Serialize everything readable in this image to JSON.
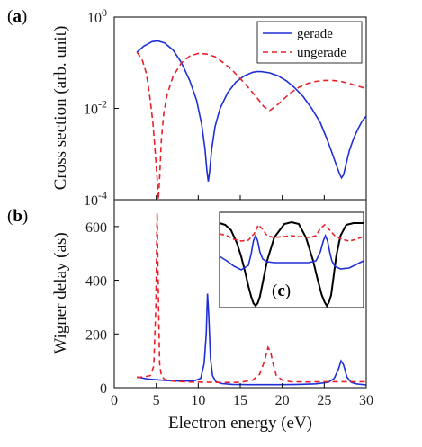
{
  "chart_data": [
    {
      "panel": "(a)",
      "type": "line",
      "ylabel": "Cross section (arb. unit)",
      "yscale": "log",
      "ylim": [
        0.0001,
        1
      ],
      "yticks": [
        {
          "value": 1,
          "base": "10",
          "exp": "0"
        },
        {
          "value": 0.01,
          "base": "10",
          "exp": "-2"
        },
        {
          "value": 0.0001,
          "base": "10",
          "exp": "-4"
        }
      ],
      "xlim": [
        0,
        30
      ],
      "legend_position": "top-right",
      "series": [
        {
          "name": "gerade",
          "color": "#1f2fd8",
          "dash": "solid",
          "x": [
            2.7,
            3.5,
            4.5,
            5.2,
            6.0,
            7.0,
            8.0,
            9.0,
            9.8,
            10.4,
            10.8,
            11.05,
            11.2,
            11.35,
            11.6,
            12.0,
            12.6,
            13.5,
            14.5,
            15.5,
            16.5,
            17.0,
            17.5,
            18.5,
            19.5,
            20.5,
            21.5,
            22.5,
            23.5,
            24.5,
            25.3,
            25.9,
            26.4,
            26.8,
            27.05,
            27.3,
            27.6,
            28.0,
            28.5,
            29.0,
            29.5,
            30.0
          ],
          "y": [
            0.17,
            0.23,
            0.29,
            0.3,
            0.27,
            0.19,
            0.1,
            0.04,
            0.015,
            0.0045,
            0.0013,
            0.0004,
            0.00025,
            0.0004,
            0.0013,
            0.004,
            0.01,
            0.022,
            0.038,
            0.052,
            0.062,
            0.064,
            0.064,
            0.06,
            0.052,
            0.04,
            0.028,
            0.018,
            0.01,
            0.005,
            0.0022,
            0.0011,
            0.0006,
            0.00038,
            0.0003,
            0.00035,
            0.0006,
            0.0012,
            0.0022,
            0.0035,
            0.0052,
            0.0068
          ]
        },
        {
          "name": "ungerade",
          "color": "#e8202a",
          "dash": "dashed",
          "x": [
            2.7,
            3.3,
            3.8,
            4.2,
            4.6,
            4.9,
            5.1,
            5.25,
            5.4,
            5.6,
            5.9,
            6.3,
            7.0,
            8.0,
            9.0,
            10.0,
            11.0,
            12.0,
            13.0,
            14.0,
            15.0,
            16.0,
            17.0,
            17.8,
            18.5,
            19.2,
            20.0,
            21.0,
            22.0,
            23.0,
            24.0,
            25.0,
            26.0,
            27.0,
            28.0,
            29.0,
            30.0
          ],
          "y": [
            0.17,
            0.12,
            0.06,
            0.02,
            0.005,
            0.001,
            0.0003,
            0.0001,
            0.0003,
            0.002,
            0.008,
            0.02,
            0.05,
            0.1,
            0.14,
            0.16,
            0.155,
            0.135,
            0.1,
            0.07,
            0.045,
            0.028,
            0.017,
            0.011,
            0.009,
            0.011,
            0.015,
            0.022,
            0.029,
            0.035,
            0.039,
            0.041,
            0.041,
            0.039,
            0.035,
            0.031,
            0.027
          ]
        }
      ]
    },
    {
      "panel": "(b)",
      "type": "line",
      "ylabel": "Wigner delay (as)",
      "xlabel": "Electron energy (eV)",
      "xlim": [
        0,
        30
      ],
      "ylim": [
        0,
        700
      ],
      "xticks": [
        0,
        5,
        10,
        15,
        20,
        25,
        30
      ],
      "yticks": [
        0,
        200,
        400,
        600
      ],
      "series": [
        {
          "name": "gerade",
          "color": "#1f2fd8",
          "dash": "solid",
          "x": [
            2.7,
            4.0,
            6.0,
            8.0,
            9.5,
            10.3,
            10.7,
            10.95,
            11.1,
            11.25,
            11.45,
            11.7,
            12.1,
            12.8,
            14.0,
            16.0,
            18.0,
            20.0,
            22.0,
            24.0,
            25.5,
            26.2,
            26.7,
            27.0,
            27.3,
            27.7,
            28.2,
            28.8,
            30.0
          ],
          "y": [
            40,
            32,
            27,
            24,
            25,
            35,
            90,
            200,
            350,
            270,
            110,
            45,
            22,
            15,
            12,
            11,
            11,
            11,
            12,
            14,
            20,
            35,
            70,
            100,
            85,
            40,
            20,
            14,
            10
          ]
        },
        {
          "name": "ungerade",
          "color": "#e8202a",
          "dash": "dashed",
          "x": [
            2.7,
            3.5,
            4.3,
            4.7,
            4.95,
            5.1,
            5.25,
            5.4,
            5.6,
            6.0,
            7.0,
            9.0,
            11.0,
            13.0,
            15.0,
            16.5,
            17.3,
            17.9,
            18.3,
            18.6,
            18.9,
            19.3,
            20.0,
            21.0,
            23.0,
            25.0,
            27.0,
            29.0,
            30.0
          ],
          "y": [
            38,
            40,
            45,
            80,
            300,
            650,
            350,
            90,
            45,
            30,
            24,
            21,
            20,
            19,
            20,
            28,
            50,
            100,
            150,
            135,
            90,
            45,
            28,
            22,
            21,
            22,
            22,
            22,
            22
          ]
        }
      ]
    },
    {
      "panel": "(c)",
      "type": "line",
      "note": "inset, no axes labels",
      "xlim": [
        0,
        1
      ],
      "ylim": [
        0,
        1
      ],
      "series": [
        {
          "color": "#000000",
          "dash": "solid",
          "x": [
            0.0,
            0.04,
            0.08,
            0.12,
            0.15,
            0.18,
            0.2,
            0.22,
            0.235,
            0.25,
            0.265,
            0.28,
            0.3,
            0.33,
            0.38,
            0.45,
            0.5,
            0.55,
            0.6,
            0.65,
            0.68,
            0.71,
            0.73,
            0.745,
            0.76,
            0.775,
            0.79,
            0.81,
            0.84,
            0.88,
            0.93,
            1.0
          ],
          "y": [
            0.92,
            0.9,
            0.84,
            0.7,
            0.55,
            0.36,
            0.22,
            0.1,
            0.03,
            0.0,
            0.03,
            0.1,
            0.26,
            0.5,
            0.76,
            0.91,
            0.93,
            0.91,
            0.76,
            0.5,
            0.3,
            0.12,
            0.04,
            0.0,
            0.04,
            0.12,
            0.3,
            0.55,
            0.78,
            0.9,
            0.92,
            0.92
          ]
        },
        {
          "color": "#1f2fd8",
          "dash": "solid",
          "x": [
            0.0,
            0.05,
            0.1,
            0.15,
            0.2,
            0.22,
            0.235,
            0.25,
            0.265,
            0.28,
            0.3,
            0.33,
            0.38,
            0.45,
            0.5,
            0.55,
            0.62,
            0.67,
            0.7,
            0.72,
            0.735,
            0.75,
            0.765,
            0.78,
            0.8,
            0.84,
            0.9,
            0.95,
            1.0
          ],
          "y": [
            0.55,
            0.5,
            0.44,
            0.4,
            0.45,
            0.58,
            0.72,
            0.78,
            0.72,
            0.6,
            0.52,
            0.49,
            0.48,
            0.48,
            0.48,
            0.48,
            0.48,
            0.5,
            0.6,
            0.72,
            0.78,
            0.72,
            0.6,
            0.5,
            0.44,
            0.41,
            0.42,
            0.46,
            0.5
          ]
        },
        {
          "color": "#e8202a",
          "dash": "dashed",
          "x": [
            0.0,
            0.05,
            0.1,
            0.15,
            0.2,
            0.24,
            0.27,
            0.3,
            0.33,
            0.38,
            0.45,
            0.5,
            0.55,
            0.62,
            0.67,
            0.7,
            0.73,
            0.76,
            0.8,
            0.85,
            0.9,
            0.95,
            1.0
          ],
          "y": [
            0.8,
            0.78,
            0.74,
            0.72,
            0.73,
            0.8,
            0.9,
            0.85,
            0.78,
            0.76,
            0.77,
            0.78,
            0.77,
            0.76,
            0.78,
            0.86,
            0.9,
            0.85,
            0.78,
            0.74,
            0.72,
            0.74,
            0.77
          ]
        }
      ]
    }
  ]
}
